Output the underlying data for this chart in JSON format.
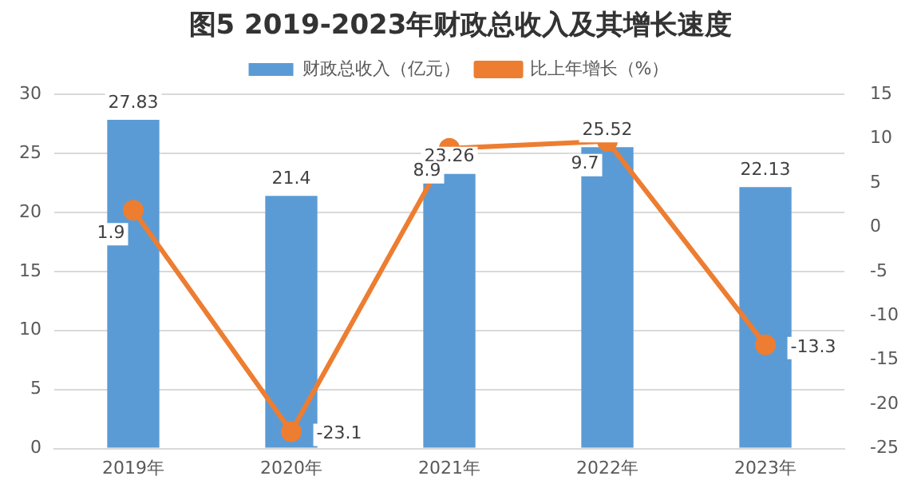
{
  "chart_data": {
    "type": "bar",
    "title": "图5  2019-2023年财政总收入及其增长速度",
    "categories": [
      "2019年",
      "2020年",
      "2021年",
      "2022年",
      "2023年"
    ],
    "series": [
      {
        "name": "财政总收入（亿元）",
        "color": "#5b9bd5",
        "values": [
          27.83,
          21.4,
          23.26,
          25.52,
          22.13
        ]
      },
      {
        "name": "比上年增长（%）",
        "type": "line",
        "axis": "y2",
        "color": "#ed7d31",
        "values": [
          1.9,
          -23.1,
          8.9,
          9.7,
          -13.3
        ]
      }
    ],
    "ylim": [
      0,
      30
    ],
    "yticks": [
      0,
      5,
      10,
      15,
      20,
      25,
      30
    ],
    "y2lim": [
      -25,
      15
    ],
    "y2ticks": [
      -25,
      -20,
      -15,
      -10,
      -5,
      0,
      5,
      10,
      15
    ],
    "grid": "y",
    "legend": "top",
    "marker": "circle",
    "line_style": "solid",
    "data_labels": true
  }
}
